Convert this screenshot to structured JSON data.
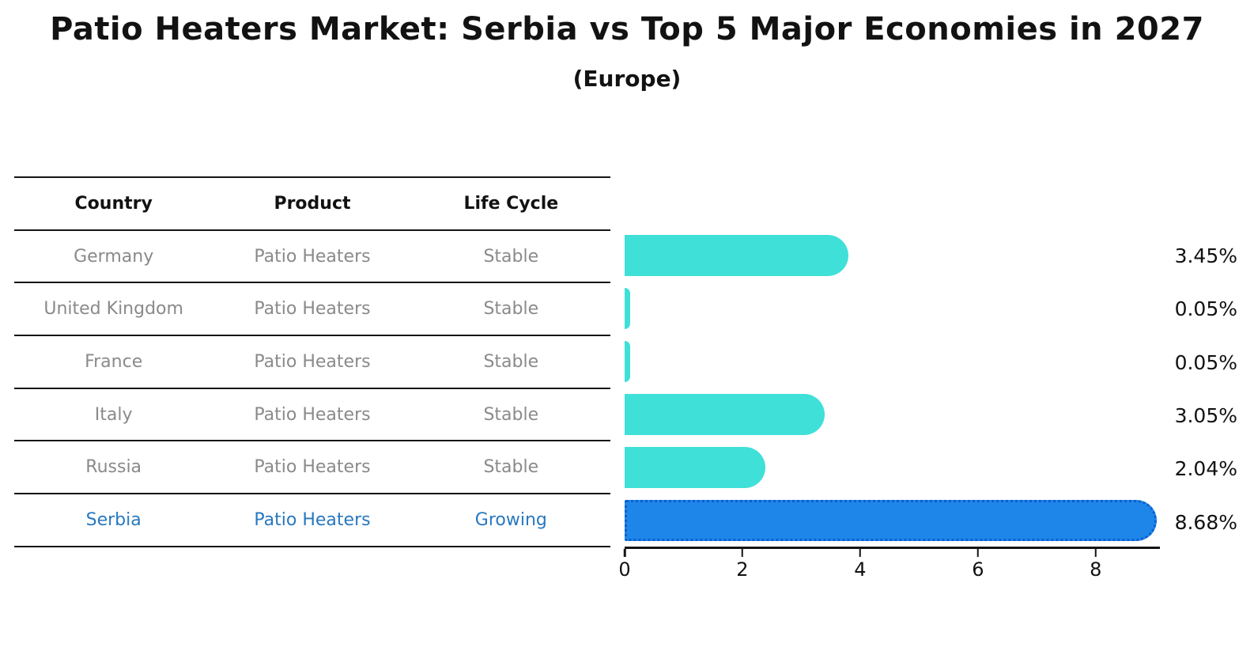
{
  "title": "Patio Heaters Market: Serbia vs Top 5 Major Economies in 2027",
  "subtitle": "(Europe)",
  "table": {
    "headers": [
      "Country",
      "Product",
      "Life Cycle"
    ],
    "rows": [
      {
        "country": "Germany",
        "product": "Patio Heaters",
        "life_cycle": "Stable",
        "highlight": false
      },
      {
        "country": "United Kingdom",
        "product": "Patio Heaters",
        "life_cycle": "Stable",
        "highlight": false
      },
      {
        "country": "France",
        "product": "Patio Heaters",
        "life_cycle": "Stable",
        "highlight": false
      },
      {
        "country": "Italy",
        "product": "Patio Heaters",
        "life_cycle": "Stable",
        "highlight": false
      },
      {
        "country": "Russia",
        "product": "Patio Heaters",
        "life_cycle": "Stable",
        "highlight": false
      },
      {
        "country": "Serbia",
        "product": "Patio Heaters",
        "life_cycle": "Growing",
        "highlight": true
      }
    ]
  },
  "chart_data": {
    "type": "bar",
    "orientation": "horizontal",
    "title": "Patio Heaters Market: Serbia vs Top 5 Major Economies in 2027 (Europe)",
    "categories": [
      "Germany",
      "United Kingdom",
      "France",
      "Italy",
      "Russia",
      "Serbia"
    ],
    "values": [
      3.45,
      0.05,
      0.05,
      3.05,
      2.04,
      8.68
    ],
    "value_labels": [
      "3.45%",
      "0.05%",
      "0.05%",
      "3.05%",
      "2.04%",
      "8.68%"
    ],
    "unit": "%",
    "xticks": [
      0,
      2,
      4,
      6,
      8
    ],
    "xlim": [
      0,
      9.09
    ],
    "grid": false,
    "legend": "none",
    "bar_color": "#3fe0d8",
    "highlight_color": "#1e86e8",
    "highlight_border_color": "#0c5ed2",
    "highlight_index": 5
  },
  "colors": {
    "text": "#121212",
    "muted_text": "#8a8a8a",
    "highlight_text": "#2878be",
    "rule": "#141414"
  }
}
